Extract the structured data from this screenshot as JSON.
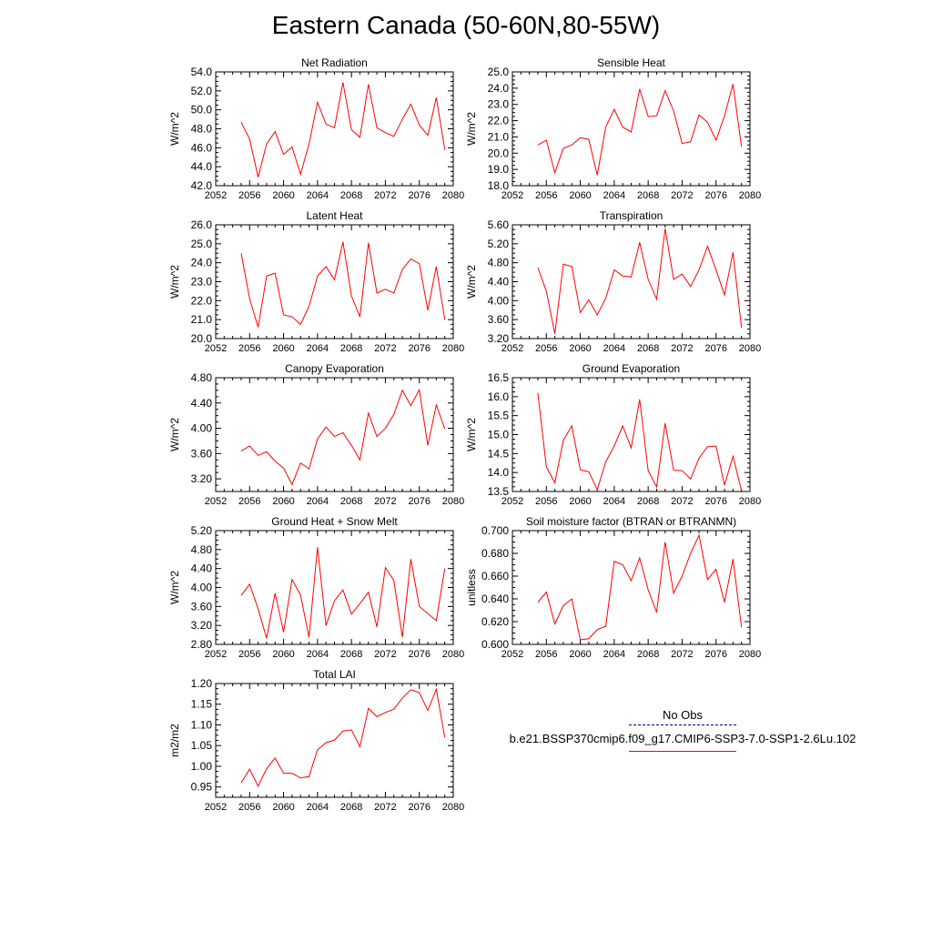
{
  "page_title": "Eastern Canada (50-60N,80-55W)",
  "colors": {
    "series": "#ff0000",
    "obs": "#000080",
    "axis": "#000000"
  },
  "legend": {
    "obs_label": "No Obs",
    "model_label": "b.e21.BSSP370cmip6.f09_g17.CMIP6-SSP3-7.0-SSP1-2.6Lu.102"
  },
  "chart_data": [
    {
      "type": "line",
      "title": "Net Radiation",
      "ylabel": "W/m^2",
      "xlim": [
        2052,
        2080
      ],
      "ylim": [
        42.0,
        54.0
      ],
      "xticks": [
        2052,
        2056,
        2060,
        2064,
        2068,
        2072,
        2076,
        2080
      ],
      "yticks": [
        "42.0",
        "44.0",
        "46.0",
        "48.0",
        "50.0",
        "52.0",
        "54.0"
      ],
      "x": [
        2055,
        2056,
        2057,
        2058,
        2059,
        2060,
        2061,
        2062,
        2063,
        2064,
        2065,
        2066,
        2067,
        2068,
        2069,
        2070,
        2071,
        2072,
        2073,
        2074,
        2075,
        2076,
        2077,
        2078,
        2079
      ],
      "series": [
        {
          "values": [
            48.7,
            46.9,
            42.9,
            46.4,
            47.7,
            45.3,
            46.1,
            43.2,
            46.4,
            50.8,
            48.5,
            48.1,
            52.9,
            47.9,
            47.1,
            52.7,
            48.1,
            47.6,
            47.2,
            49.0,
            50.6,
            48.4,
            47.3,
            51.3,
            45.8
          ]
        }
      ]
    },
    {
      "type": "line",
      "title": "Sensible Heat",
      "ylabel": "W/m^2",
      "xlim": [
        2052,
        2080
      ],
      "ylim": [
        18.0,
        25.0
      ],
      "xticks": [
        2052,
        2056,
        2060,
        2064,
        2068,
        2072,
        2076,
        2080
      ],
      "yticks": [
        "18.0",
        "19.0",
        "20.0",
        "21.0",
        "22.0",
        "23.0",
        "24.0",
        "25.0"
      ],
      "x": [
        2055,
        2056,
        2057,
        2058,
        2059,
        2060,
        2061,
        2062,
        2063,
        2064,
        2065,
        2066,
        2067,
        2068,
        2069,
        2070,
        2071,
        2072,
        2073,
        2074,
        2075,
        2076,
        2077,
        2078,
        2079
      ],
      "series": [
        {
          "values": [
            20.5,
            20.8,
            18.8,
            20.3,
            20.5,
            20.95,
            20.85,
            18.65,
            21.6,
            22.7,
            21.6,
            21.3,
            23.95,
            22.25,
            22.3,
            23.85,
            22.6,
            20.6,
            20.7,
            22.35,
            21.9,
            20.8,
            22.3,
            24.25,
            20.4
          ]
        }
      ]
    },
    {
      "type": "line",
      "title": "Latent Heat",
      "ylabel": "W/m^2",
      "xlim": [
        2052,
        2080
      ],
      "ylim": [
        20.0,
        26.0
      ],
      "xticks": [
        2052,
        2056,
        2060,
        2064,
        2068,
        2072,
        2076,
        2080
      ],
      "yticks": [
        "20.0",
        "21.0",
        "22.0",
        "23.0",
        "24.0",
        "25.0",
        "26.0"
      ],
      "x": [
        2055,
        2056,
        2057,
        2058,
        2059,
        2060,
        2061,
        2062,
        2063,
        2064,
        2065,
        2066,
        2067,
        2068,
        2069,
        2070,
        2071,
        2072,
        2073,
        2074,
        2075,
        2076,
        2077,
        2078,
        2079
      ],
      "series": [
        {
          "values": [
            24.5,
            22.1,
            20.6,
            23.3,
            23.45,
            21.25,
            21.15,
            20.75,
            21.7,
            23.3,
            23.8,
            23.1,
            25.1,
            22.25,
            21.15,
            25.05,
            22.4,
            22.6,
            22.4,
            23.65,
            24.2,
            23.95,
            21.5,
            23.8,
            21.0
          ]
        }
      ]
    },
    {
      "type": "line",
      "title": "Transpiration",
      "ylabel": "W/m^2",
      "xlim": [
        2052,
        2080
      ],
      "ylim": [
        3.2,
        5.6
      ],
      "xticks": [
        2052,
        2056,
        2060,
        2064,
        2068,
        2072,
        2076,
        2080
      ],
      "yticks": [
        "3.20",
        "3.60",
        "4.00",
        "4.40",
        "4.80",
        "5.20",
        "5.60"
      ],
      "x": [
        2055,
        2056,
        2057,
        2058,
        2059,
        2060,
        2061,
        2062,
        2063,
        2064,
        2065,
        2066,
        2067,
        2068,
        2069,
        2070,
        2071,
        2072,
        2073,
        2074,
        2075,
        2076,
        2077,
        2078,
        2079
      ],
      "series": [
        {
          "values": [
            4.7,
            4.2,
            3.3,
            4.77,
            4.72,
            3.75,
            4.02,
            3.7,
            4.05,
            4.65,
            4.52,
            4.5,
            5.23,
            4.45,
            4.03,
            5.52,
            4.45,
            4.56,
            4.3,
            4.65,
            5.15,
            4.65,
            4.12,
            5.02,
            3.43
          ]
        }
      ]
    },
    {
      "type": "line",
      "title": "Canopy Evaporation",
      "ylabel": "W/m^2",
      "xlim": [
        2052,
        2080
      ],
      "ylim": [
        3.0,
        4.8
      ],
      "xticks": [
        2052,
        2056,
        2060,
        2064,
        2068,
        2072,
        2076,
        2080
      ],
      "yticks": [
        "3.20",
        "3.60",
        "4.00",
        "4.40",
        "4.80"
      ],
      "x": [
        2055,
        2056,
        2057,
        2058,
        2059,
        2060,
        2061,
        2062,
        2063,
        2064,
        2065,
        2066,
        2067,
        2068,
        2069,
        2070,
        2071,
        2072,
        2073,
        2074,
        2075,
        2076,
        2077,
        2078,
        2079
      ],
      "series": [
        {
          "values": [
            3.64,
            3.72,
            3.57,
            3.63,
            3.48,
            3.37,
            3.11,
            3.45,
            3.36,
            3.83,
            4.02,
            3.87,
            3.93,
            3.73,
            3.5,
            4.24,
            3.87,
            4.0,
            4.22,
            4.6,
            4.36,
            4.61,
            3.73,
            4.37,
            3.99
          ]
        }
      ]
    },
    {
      "type": "line",
      "title": "Ground Evaporation",
      "ylabel": "W/m^2",
      "xlim": [
        2052,
        2080
      ],
      "ylim": [
        13.5,
        16.5
      ],
      "xticks": [
        2052,
        2056,
        2060,
        2064,
        2068,
        2072,
        2076,
        2080
      ],
      "yticks": [
        "13.5",
        "14.0",
        "14.5",
        "15.0",
        "15.5",
        "16.0",
        "16.5"
      ],
      "x": [
        2055,
        2056,
        2057,
        2058,
        2059,
        2060,
        2061,
        2062,
        2063,
        2064,
        2065,
        2066,
        2067,
        2068,
        2069,
        2070,
        2071,
        2072,
        2073,
        2074,
        2075,
        2076,
        2077,
        2078,
        2079
      ],
      "series": [
        {
          "values": [
            16.1,
            14.15,
            13.73,
            14.85,
            15.23,
            14.07,
            14.02,
            13.55,
            14.28,
            14.7,
            15.23,
            14.65,
            15.93,
            14.05,
            13.62,
            15.3,
            14.06,
            14.05,
            13.83,
            14.38,
            14.68,
            14.7,
            13.67,
            14.43,
            13.52
          ]
        }
      ]
    },
    {
      "type": "line",
      "title": "Ground Heat + Snow Melt",
      "ylabel": "W/m^2",
      "xlim": [
        2052,
        2080
      ],
      "ylim": [
        2.8,
        5.2
      ],
      "xticks": [
        2052,
        2056,
        2060,
        2064,
        2068,
        2072,
        2076,
        2080
      ],
      "yticks": [
        "2.80",
        "3.20",
        "3.60",
        "4.00",
        "4.40",
        "4.80",
        "5.20"
      ],
      "x": [
        2055,
        2056,
        2057,
        2058,
        2059,
        2060,
        2061,
        2062,
        2063,
        2064,
        2065,
        2066,
        2067,
        2068,
        2069,
        2070,
        2071,
        2072,
        2073,
        2074,
        2075,
        2076,
        2077,
        2078,
        2079
      ],
      "series": [
        {
          "values": [
            3.83,
            4.07,
            3.55,
            2.93,
            3.88,
            3.06,
            4.17,
            3.84,
            2.95,
            4.85,
            3.2,
            3.72,
            3.95,
            3.44,
            3.66,
            3.9,
            3.17,
            4.42,
            4.15,
            2.95,
            4.6,
            3.6,
            3.45,
            3.3,
            4.4
          ]
        }
      ]
    },
    {
      "type": "line",
      "title": "Soil moisture factor (BTRAN or BTRANMN)",
      "ylabel": "unitless",
      "xlim": [
        2052,
        2080
      ],
      "ylim": [
        0.6,
        0.7
      ],
      "xticks": [
        2052,
        2056,
        2060,
        2064,
        2068,
        2072,
        2076,
        2080
      ],
      "yticks": [
        "0.600",
        "0.620",
        "0.640",
        "0.660",
        "0.680",
        "0.700"
      ],
      "x": [
        2055,
        2056,
        2057,
        2058,
        2059,
        2060,
        2061,
        2062,
        2063,
        2064,
        2065,
        2066,
        2067,
        2068,
        2069,
        2070,
        2071,
        2072,
        2073,
        2074,
        2075,
        2076,
        2077,
        2078,
        2079
      ],
      "series": [
        {
          "values": [
            0.637,
            0.646,
            0.618,
            0.634,
            0.64,
            0.604,
            0.605,
            0.613,
            0.616,
            0.673,
            0.67,
            0.656,
            0.676,
            0.648,
            0.628,
            0.69,
            0.645,
            0.66,
            0.68,
            0.696,
            0.657,
            0.666,
            0.637,
            0.675,
            0.615
          ]
        }
      ]
    },
    {
      "type": "line",
      "title": "Total LAI",
      "ylabel": "m2/m2",
      "xlim": [
        2052,
        2080
      ],
      "ylim": [
        0.925,
        1.2
      ],
      "xticks": [
        2052,
        2056,
        2060,
        2064,
        2068,
        2072,
        2076,
        2080
      ],
      "yticks": [
        "0.95",
        "1.00",
        "1.05",
        "1.10",
        "1.15",
        "1.20"
      ],
      "x": [
        2055,
        2056,
        2057,
        2058,
        2059,
        2060,
        2061,
        2062,
        2063,
        2064,
        2065,
        2066,
        2067,
        2068,
        2069,
        2070,
        2071,
        2072,
        2073,
        2074,
        2075,
        2076,
        2077,
        2078,
        2079
      ],
      "series": [
        {
          "values": [
            0.96,
            0.993,
            0.952,
            0.994,
            1.02,
            0.983,
            0.983,
            0.972,
            0.975,
            1.04,
            1.057,
            1.063,
            1.085,
            1.088,
            1.047,
            1.14,
            1.12,
            1.13,
            1.138,
            1.165,
            1.185,
            1.178,
            1.135,
            1.186,
            1.07
          ]
        }
      ]
    }
  ]
}
